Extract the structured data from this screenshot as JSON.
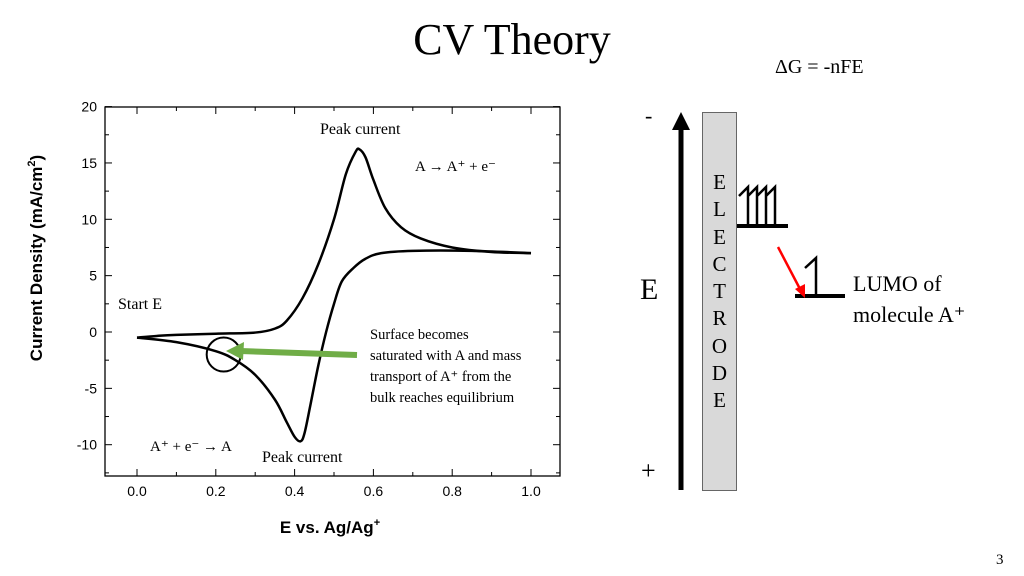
{
  "slide": {
    "title": "CV Theory",
    "equation": "ΔG = -nFE",
    "page_number": "3"
  },
  "chart_data": {
    "type": "line",
    "xlabel": "E vs. Ag/Ag",
    "xlabel_sup": "+",
    "ylabel": "Current Density (mA/cm",
    "ylabel_sup": "2",
    "ylabel_end": ")",
    "xlim": [
      -0.08,
      1.07
    ],
    "ylim": [
      -12.5,
      20
    ],
    "x_ticks": [
      "0.0",
      "0.2",
      "0.4",
      "0.6",
      "0.8",
      "1.0"
    ],
    "x_tick_values": [
      0,
      0.2,
      0.4,
      0.6,
      0.8,
      1.0
    ],
    "y_ticks": [
      "20",
      "15",
      "10",
      "5",
      "0",
      "-5",
      "-10"
    ],
    "y_tick_values": [
      20,
      15,
      10,
      5,
      0,
      -5,
      -10
    ],
    "grid": false,
    "line_color": "#000000",
    "series": [
      {
        "segment": "forward",
        "points": [
          [
            0,
            -0.5
          ],
          [
            0.05,
            -0.35
          ],
          [
            0.1,
            -0.25
          ],
          [
            0.2,
            -0.15
          ],
          [
            0.3,
            -0.05
          ],
          [
            0.35,
            0.3
          ],
          [
            0.38,
            1
          ],
          [
            0.42,
            3
          ],
          [
            0.46,
            6
          ],
          [
            0.5,
            10
          ],
          [
            0.53,
            14
          ],
          [
            0.555,
            16
          ],
          [
            0.565,
            16.2
          ],
          [
            0.58,
            15.5
          ],
          [
            0.6,
            13.5
          ],
          [
            0.63,
            11
          ],
          [
            0.67,
            9.3
          ],
          [
            0.72,
            8.3
          ],
          [
            0.8,
            7.5
          ],
          [
            0.9,
            7.1
          ],
          [
            1.0,
            7.0
          ]
        ]
      },
      {
        "segment": "reverse",
        "points": [
          [
            1.0,
            7.0
          ],
          [
            0.85,
            7.2
          ],
          [
            0.7,
            7.2
          ],
          [
            0.62,
            7.0
          ],
          [
            0.58,
            6.5
          ],
          [
            0.55,
            5.7
          ],
          [
            0.52,
            4.5
          ],
          [
            0.5,
            2.5
          ],
          [
            0.48,
            0
          ],
          [
            0.46,
            -3
          ],
          [
            0.44,
            -6.5
          ],
          [
            0.425,
            -9
          ],
          [
            0.415,
            -9.7
          ],
          [
            0.4,
            -9.3
          ],
          [
            0.38,
            -8
          ],
          [
            0.35,
            -6
          ],
          [
            0.3,
            -3.8
          ],
          [
            0.25,
            -2.5
          ],
          [
            0.2,
            -1.7
          ],
          [
            0.1,
            -0.9
          ],
          [
            0,
            -0.5
          ]
        ]
      }
    ],
    "annotations": {
      "peak_top": "Peak current",
      "oxidation": "A → A⁺ + e⁻",
      "start": "Start E",
      "reduction": "A⁺ + e⁻ → A",
      "peak_bottom": "Peak current",
      "note_lines": [
        "Surface becomes",
        "saturated with A and mass",
        "transport of A⁺ from the",
        "bulk reaches equilibrium"
      ],
      "note_arrow_color": "#70ad47",
      "highlight_point": [
        0.22,
        -2
      ]
    }
  },
  "diagram": {
    "minus": "-",
    "plus": "+",
    "axis_label": "E",
    "electrode_letters": [
      "E",
      "L",
      "E",
      "C",
      "T",
      "R",
      "O",
      "D",
      "E"
    ],
    "lumo_line1": "LUMO of",
    "lumo_line2": "molecule A⁺",
    "transfer_arrow_color": "#ff0000",
    "electrode_fill": "#d9d9d9"
  }
}
